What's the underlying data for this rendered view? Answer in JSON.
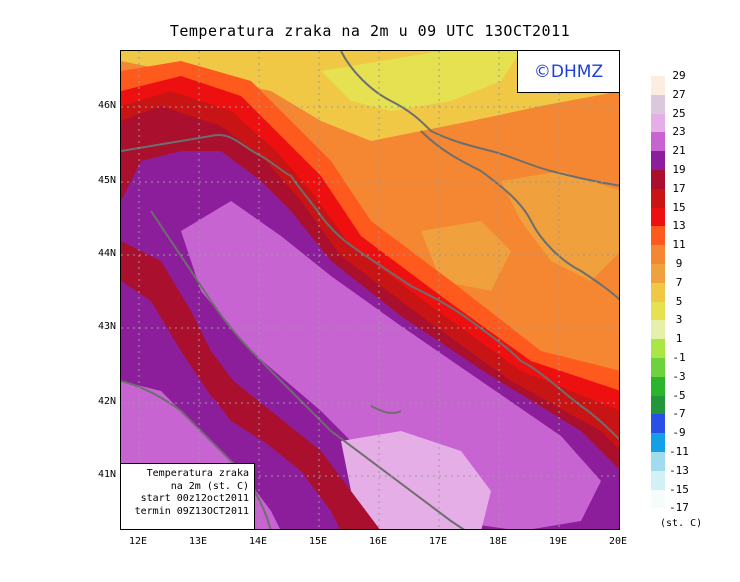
{
  "title": "Temperatura zraka na 2m u 09 UTC 13OCT2011",
  "copyright": "©DHMZ",
  "info_box": {
    "line1": "Temperatura zraka",
    "line2": "na 2m (st. C)",
    "line3": "start 00z12oct2011",
    "line4": "termin 09Z13OCT2011"
  },
  "lat_labels": [
    "46N",
    "45N",
    "44N",
    "43N",
    "42N",
    "41N"
  ],
  "lon_labels": [
    "12E",
    "13E",
    "14E",
    "15E",
    "16E",
    "17E",
    "18E",
    "19E",
    "20E"
  ],
  "legend": {
    "units": "(st. C)",
    "labels": [
      "29",
      "27",
      "25",
      "23",
      "21",
      "19",
      "17",
      "15",
      "13",
      "11",
      "9",
      "7",
      "5",
      "3",
      "1",
      "-1",
      "-3",
      "-5",
      "-7",
      "-9",
      "-11",
      "-13",
      "-15",
      "-17"
    ],
    "colors": [
      "#fbeee0",
      "#dcc8dc",
      "#e6aee6",
      "#c864d2",
      "#8c1e9b",
      "#aa0f2d",
      "#c81414",
      "#ee1010",
      "#ff5a1e",
      "#f58732",
      "#f0a03c",
      "#f0c846",
      "#e6e150",
      "#e6f0aa",
      "#aae646",
      "#6ed23c",
      "#2db42d",
      "#23963c",
      "#2850e6",
      "#14a0e6",
      "#a0dceb",
      "#d2f0f5",
      "#f5fcfc"
    ]
  }
}
